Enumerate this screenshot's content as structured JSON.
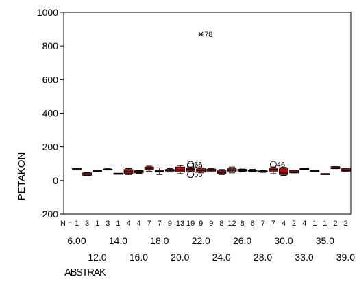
{
  "chart_data": {
    "type": "boxplot",
    "title": "",
    "xlabel": "ABSTRAK",
    "ylabel": "PETAKON",
    "ylim": [
      -200,
      1000
    ],
    "yticks": [
      -200,
      0,
      200,
      400,
      600,
      800,
      1000
    ],
    "n_label": "N =",
    "categories_row1": [
      "6.00",
      "14.0",
      "18.0",
      "22.0",
      "26.0",
      "30.0",
      "35.0"
    ],
    "categories_row2": [
      "12.0",
      "16.0",
      "20.0",
      "24.0",
      "28.0",
      "33.0",
      "39.0"
    ],
    "colors": {
      "box_fill": "#cc0000",
      "line": "#000000"
    },
    "boxes": [
      {
        "n": "1",
        "q1": 70,
        "med": 70,
        "q3": 70,
        "lo": 70,
        "hi": 70
      },
      {
        "n": "3",
        "q1": 30,
        "med": 38,
        "q3": 45,
        "lo": 28,
        "hi": 48
      },
      {
        "n": "1",
        "q1": 60,
        "med": 60,
        "q3": 60,
        "lo": 60,
        "hi": 60
      },
      {
        "n": "3",
        "q1": 63,
        "med": 65,
        "q3": 68,
        "lo": 62,
        "hi": 70
      },
      {
        "n": "1",
        "q1": 42,
        "med": 42,
        "q3": 42,
        "lo": 42,
        "hi": 42
      },
      {
        "n": "4",
        "q1": 42,
        "med": 52,
        "q3": 65,
        "lo": 35,
        "hi": 70
      },
      {
        "n": "4",
        "q1": 45,
        "med": 52,
        "q3": 58,
        "lo": 42,
        "hi": 60
      },
      {
        "n": "7",
        "q1": 62,
        "med": 70,
        "q3": 80,
        "lo": 55,
        "hi": 85
      },
      {
        "n": "7",
        "q1": 50,
        "med": 55,
        "q3": 62,
        "lo": 35,
        "hi": 75
      },
      {
        "n": "9",
        "q1": 55,
        "med": 60,
        "q3": 66,
        "lo": 50,
        "hi": 70
      },
      {
        "n": "13",
        "q1": 50,
        "med": 62,
        "q3": 80,
        "lo": 40,
        "hi": 88
      },
      {
        "n": "19",
        "q1": 55,
        "med": 65,
        "q3": 72,
        "lo": 50,
        "hi": 80
      },
      {
        "n": "9",
        "q1": 50,
        "med": 60,
        "q3": 70,
        "lo": 45,
        "hi": 75
      },
      {
        "n": "9",
        "q1": 55,
        "med": 62,
        "q3": 68,
        "lo": 50,
        "hi": 72
      },
      {
        "n": "8",
        "q1": 40,
        "med": 48,
        "q3": 58,
        "lo": 35,
        "hi": 65
      },
      {
        "n": "12",
        "q1": 55,
        "med": 62,
        "q3": 70,
        "lo": 45,
        "hi": 80
      },
      {
        "n": "8",
        "q1": 55,
        "med": 60,
        "q3": 66,
        "lo": 52,
        "hi": 68
      },
      {
        "n": "6",
        "q1": 55,
        "med": 58,
        "q3": 62,
        "lo": 52,
        "hi": 66
      },
      {
        "n": "7",
        "q1": 50,
        "med": 53,
        "q3": 57,
        "lo": 48,
        "hi": 60
      },
      {
        "n": "7",
        "q1": 55,
        "med": 65,
        "q3": 75,
        "lo": 40,
        "hi": 80
      },
      {
        "n": "4",
        "q1": 35,
        "med": 45,
        "q3": 70,
        "lo": 30,
        "hi": 78
      },
      {
        "n": "2",
        "q1": 45,
        "med": 50,
        "q3": 60,
        "lo": 45,
        "hi": 60
      },
      {
        "n": "4",
        "q1": 65,
        "med": 68,
        "q3": 72,
        "lo": 63,
        "hi": 74
      },
      {
        "n": "1",
        "q1": 60,
        "med": 60,
        "q3": 60,
        "lo": 60,
        "hi": 60
      },
      {
        "n": "1",
        "q1": 40,
        "med": 40,
        "q3": 40,
        "lo": 40,
        "hi": 40
      },
      {
        "n": "2",
        "q1": 70,
        "med": 75,
        "q3": 82,
        "lo": 70,
        "hi": 82
      },
      {
        "n": "2",
        "q1": 55,
        "med": 60,
        "q3": 70,
        "lo": 55,
        "hi": 70
      }
    ],
    "outliers": [
      {
        "box": 11,
        "y": 95,
        "label": "56",
        "marker": "circle"
      },
      {
        "box": 11,
        "y": 85,
        "label": "40",
        "marker": "circle"
      },
      {
        "box": 11,
        "y": 35,
        "label": "56",
        "marker": "circle"
      },
      {
        "box": 19,
        "y": 95,
        "label": "46",
        "marker": "circle"
      },
      {
        "box": 12,
        "y": 870,
        "label": "78",
        "marker": "star"
      }
    ]
  }
}
